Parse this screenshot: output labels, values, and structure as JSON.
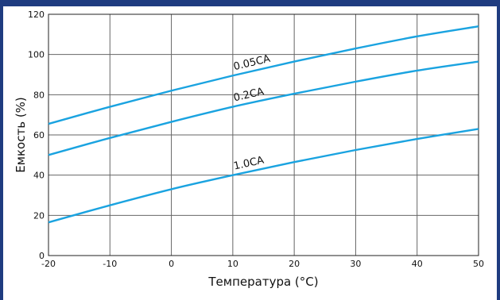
{
  "chart_data": {
    "type": "line",
    "xlabel": "Температура (°C)",
    "ylabel": "Емкость (%)",
    "xlim": [
      -20,
      50
    ],
    "ylim": [
      0,
      120
    ],
    "x_ticks": [
      "-20",
      "-10",
      "0",
      "10",
      "20",
      "30",
      "40",
      "50"
    ],
    "y_ticks": [
      "0",
      "20",
      "40",
      "60",
      "80",
      "100",
      "120"
    ],
    "grid": true,
    "legend": "none",
    "line_color": "#1aa3e0",
    "series": [
      {
        "name": "0.05CA",
        "x": [
          -20,
          -10,
          0,
          10,
          20,
          30,
          40,
          50
        ],
        "y": [
          65.5,
          74,
          82,
          89.5,
          96.5,
          103,
          109,
          114
        ]
      },
      {
        "name": "0.2CA",
        "x": [
          -20,
          -10,
          0,
          10,
          20,
          30,
          40,
          50
        ],
        "y": [
          50,
          58.5,
          66.5,
          74,
          80.5,
          86.5,
          92,
          96.5
        ]
      },
      {
        "name": "1.0CA",
        "x": [
          -20,
          -10,
          0,
          10,
          20,
          30,
          40,
          50
        ],
        "y": [
          16.5,
          25,
          33,
          40,
          46.5,
          52.5,
          58,
          63
        ]
      }
    ]
  }
}
